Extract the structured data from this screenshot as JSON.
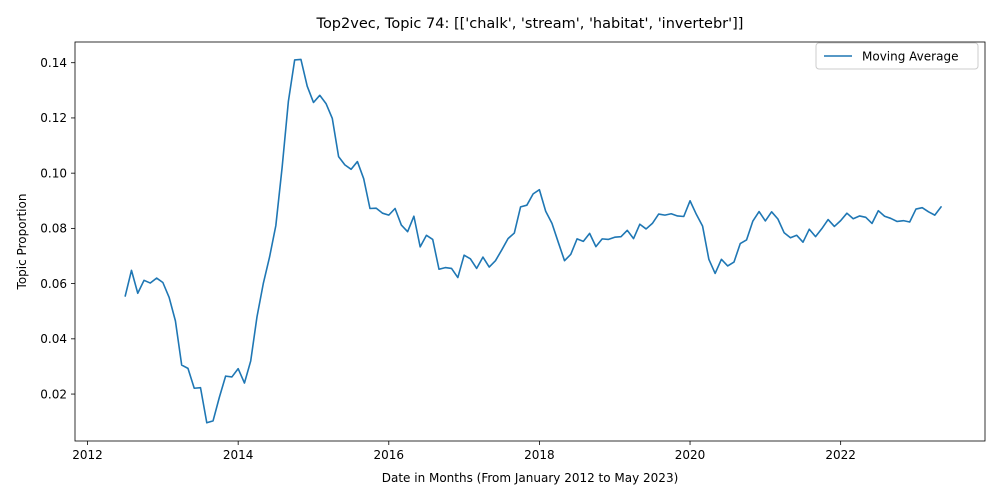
{
  "chart_data": {
    "type": "line",
    "title": "Top2vec, Topic 74: [['chalk', 'stream', 'habitat', 'invertebr']]",
    "xlabel": "Date in Months (From January 2012 to May 2023)",
    "ylabel": "Topic Proportion",
    "xlim": [
      "2011-11-01",
      "2023-12-01"
    ],
    "ylim": [
      0.003,
      0.1475
    ],
    "xticks": [
      {
        "value": "2012-01-01",
        "label": "2012"
      },
      {
        "value": "2014-01-01",
        "label": "2014"
      },
      {
        "value": "2016-01-01",
        "label": "2016"
      },
      {
        "value": "2018-01-01",
        "label": "2018"
      },
      {
        "value": "2020-01-01",
        "label": "2020"
      },
      {
        "value": "2022-01-01",
        "label": "2022"
      }
    ],
    "yticks": [
      {
        "value": 0.02,
        "label": "0.02"
      },
      {
        "value": 0.04,
        "label": "0.04"
      },
      {
        "value": 0.06,
        "label": "0.06"
      },
      {
        "value": 0.08,
        "label": "0.08"
      },
      {
        "value": 0.1,
        "label": "0.10"
      },
      {
        "value": 0.12,
        "label": "0.12"
      },
      {
        "value": 0.14,
        "label": "0.14"
      }
    ],
    "grid": false,
    "legend": {
      "position": "top-right"
    },
    "colors": {
      "series": "#1f77b4"
    },
    "series": [
      {
        "name": "Moving Average",
        "x": [
          "2012-07",
          "2012-08",
          "2012-09",
          "2012-10",
          "2012-11",
          "2012-12",
          "2013-01",
          "2013-02",
          "2013-03",
          "2013-04",
          "2013-05",
          "2013-06",
          "2013-07",
          "2013-08",
          "2013-09",
          "2013-10",
          "2013-11",
          "2013-12",
          "2014-01",
          "2014-02",
          "2014-03",
          "2014-04",
          "2014-05",
          "2014-06",
          "2014-07",
          "2014-08",
          "2014-09",
          "2014-10",
          "2014-11",
          "2014-12",
          "2015-01",
          "2015-02",
          "2015-03",
          "2015-04",
          "2015-05",
          "2015-06",
          "2015-07",
          "2015-08",
          "2015-09",
          "2015-10",
          "2015-11",
          "2015-12",
          "2016-01",
          "2016-02",
          "2016-03",
          "2016-04",
          "2016-05",
          "2016-06",
          "2016-07",
          "2016-08",
          "2016-09",
          "2016-10",
          "2016-11",
          "2016-12",
          "2017-01",
          "2017-02",
          "2017-03",
          "2017-04",
          "2017-05",
          "2017-06",
          "2017-07",
          "2017-08",
          "2017-09",
          "2017-10",
          "2017-11",
          "2017-12",
          "2018-01",
          "2018-02",
          "2018-03",
          "2018-04",
          "2018-05",
          "2018-06",
          "2018-07",
          "2018-08",
          "2018-09",
          "2018-10",
          "2018-11",
          "2018-12",
          "2019-01",
          "2019-02",
          "2019-03",
          "2019-04",
          "2019-05",
          "2019-06",
          "2019-07",
          "2019-08",
          "2019-09",
          "2019-10",
          "2019-11",
          "2019-12",
          "2020-01",
          "2020-02",
          "2020-03",
          "2020-04",
          "2020-05",
          "2020-06",
          "2020-07",
          "2020-08",
          "2020-09",
          "2020-10",
          "2020-11",
          "2020-12",
          "2021-01",
          "2021-02",
          "2021-03",
          "2021-04",
          "2021-05",
          "2021-06",
          "2021-07",
          "2021-08",
          "2021-09",
          "2021-10",
          "2021-11",
          "2021-12",
          "2022-01",
          "2022-02",
          "2022-03",
          "2022-04",
          "2022-05",
          "2022-06",
          "2022-07",
          "2022-08",
          "2022-09",
          "2022-10",
          "2022-11",
          "2022-12",
          "2023-01",
          "2023-02",
          "2023-03",
          "2023-04",
          "2023-05"
        ],
        "values": [
          0.0555,
          0.0648,
          0.0565,
          0.0612,
          0.0602,
          0.062,
          0.0604,
          0.055,
          0.0465,
          0.0305,
          0.0293,
          0.0221,
          0.0223,
          0.0096,
          0.0103,
          0.0188,
          0.0265,
          0.0262,
          0.0292,
          0.024,
          0.032,
          0.048,
          0.06,
          0.0696,
          0.081,
          0.102,
          0.126,
          0.141,
          0.1412,
          0.1315,
          0.1256,
          0.1282,
          0.1252,
          0.1198,
          0.106,
          0.103,
          0.1014,
          0.1042,
          0.098,
          0.0872,
          0.0873,
          0.0855,
          0.0848,
          0.0872,
          0.0812,
          0.0788,
          0.0844,
          0.0733,
          0.0775,
          0.076,
          0.0652,
          0.0658,
          0.0655,
          0.0622,
          0.0703,
          0.069,
          0.0655,
          0.0696,
          0.066,
          0.0683,
          0.0722,
          0.0763,
          0.0783,
          0.0878,
          0.0884,
          0.0925,
          0.094,
          0.0862,
          0.0818,
          0.075,
          0.0683,
          0.0706,
          0.0762,
          0.0753,
          0.0782,
          0.0734,
          0.0762,
          0.076,
          0.0768,
          0.077,
          0.0793,
          0.0763,
          0.0815,
          0.0798,
          0.0818,
          0.0852,
          0.0848,
          0.0853,
          0.0845,
          0.0843,
          0.09,
          0.0851,
          0.0808,
          0.0688,
          0.0637,
          0.0688,
          0.0664,
          0.0678,
          0.0745,
          0.0758,
          0.0826,
          0.0861,
          0.0827,
          0.086,
          0.0834,
          0.0784,
          0.0766,
          0.0775,
          0.075,
          0.0797,
          0.077,
          0.0799,
          0.0832,
          0.0807,
          0.0828,
          0.0855,
          0.0835,
          0.0845,
          0.084,
          0.0818,
          0.0864,
          0.0844,
          0.0836,
          0.0825,
          0.0828,
          0.0823,
          0.087,
          0.0875,
          0.086,
          0.0848,
          0.0878
        ]
      }
    ]
  }
}
